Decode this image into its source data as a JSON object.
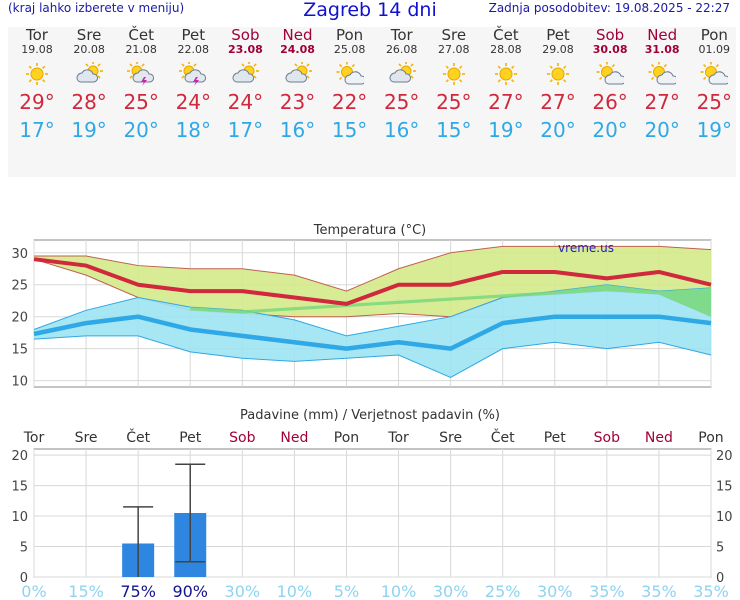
{
  "header": {
    "left_note": "(kraj lahko izberete v meniju)",
    "title": "Zagreb 14 dni",
    "updated": "Zadnja posodobitev: 19.08.2025 - 22:27"
  },
  "days": [
    {
      "name": "Tor",
      "date": "19.08",
      "weekend": false,
      "icon": "sun-icon",
      "max": "29°",
      "min": "17°"
    },
    {
      "name": "Sre",
      "date": "20.08",
      "weekend": false,
      "icon": "cloud-sun-icon",
      "max": "28°",
      "min": "19°"
    },
    {
      "name": "Čet",
      "date": "21.08",
      "weekend": false,
      "icon": "sun-thunder-icon",
      "max": "25°",
      "min": "20°"
    },
    {
      "name": "Pet",
      "date": "22.08",
      "weekend": false,
      "icon": "sun-thunder-icon",
      "max": "24°",
      "min": "18°"
    },
    {
      "name": "Sob",
      "date": "23.08",
      "weekend": true,
      "icon": "cloud-sun-icon",
      "max": "24°",
      "min": "17°"
    },
    {
      "name": "Ned",
      "date": "24.08",
      "weekend": true,
      "icon": "cloud-sun-icon",
      "max": "23°",
      "min": "16°"
    },
    {
      "name": "Pon",
      "date": "25.08",
      "weekend": false,
      "icon": "sun-cloud-icon",
      "max": "22°",
      "min": "15°"
    },
    {
      "name": "Tor",
      "date": "26.08",
      "weekend": false,
      "icon": "cloud-sun-icon",
      "max": "25°",
      "min": "16°"
    },
    {
      "name": "Sre",
      "date": "27.08",
      "weekend": false,
      "icon": "sun-icon",
      "max": "25°",
      "min": "15°"
    },
    {
      "name": "Čet",
      "date": "28.08",
      "weekend": false,
      "icon": "sun-icon",
      "max": "27°",
      "min": "19°"
    },
    {
      "name": "Pet",
      "date": "29.08",
      "weekend": false,
      "icon": "sun-icon",
      "max": "27°",
      "min": "20°"
    },
    {
      "name": "Sob",
      "date": "30.08",
      "weekend": true,
      "icon": "sun-cloud-icon",
      "max": "26°",
      "min": "20°"
    },
    {
      "name": "Ned",
      "date": "31.08",
      "weekend": true,
      "icon": "sun-cloud-icon",
      "max": "27°",
      "min": "20°"
    },
    {
      "name": "Pon",
      "date": "01.09",
      "weekend": false,
      "icon": "sun-cloud-icon",
      "max": "25°",
      "min": "19°"
    }
  ],
  "chart_data": [
    {
      "type": "line",
      "title": "Temperatura (°C)",
      "watermark": "vreme.us",
      "ylim": [
        9,
        32
      ],
      "yticks": [
        10,
        15,
        20,
        25,
        30
      ],
      "grid": true,
      "colors": {
        "max": "#d0283c",
        "min": "#2fa8e6",
        "max_band": "#d4ea8a",
        "min_band": "#9de3f2",
        "overlap": "#7ad87a"
      },
      "series": [
        {
          "values": [
            29,
            28,
            25,
            24,
            24,
            23,
            22,
            25,
            25,
            27,
            27,
            26,
            27,
            25
          ]
        },
        {
          "values": [
            17.3,
            19,
            20,
            18,
            17,
            16,
            15,
            16,
            15,
            19,
            20,
            20,
            20,
            19
          ]
        },
        {
          "values": [
            29.5,
            29.5,
            28,
            27.5,
            27.5,
            26.5,
            24,
            27.5,
            30,
            31,
            31,
            31,
            31,
            30.5
          ]
        },
        {
          "values": [
            29,
            26.5,
            23,
            21,
            20.5,
            20,
            20,
            20.5,
            20,
            23,
            23.5,
            24,
            23.5,
            20
          ]
        },
        {
          "values": [
            18,
            21,
            23,
            21.5,
            21,
            19.5,
            17,
            18.5,
            20,
            23,
            24,
            25,
            24,
            24.5
          ]
        },
        {
          "values": [
            16.5,
            17,
            17,
            14.5,
            13.5,
            13,
            13.5,
            14,
            10.5,
            15,
            16,
            15,
            16,
            14
          ]
        }
      ]
    },
    {
      "type": "bar",
      "title": "Padavine (mm) / Verjetnost padavin (%)",
      "categories": [
        "Tor",
        "Sre",
        "Čet",
        "Pet",
        "Sob",
        "Ned",
        "Pon",
        "Tor",
        "Sre",
        "Čet",
        "Pet",
        "Sob",
        "Ned",
        "Pon"
      ],
      "weekend": [
        false,
        false,
        false,
        false,
        true,
        true,
        false,
        false,
        false,
        false,
        false,
        true,
        true,
        false
      ],
      "ylim": [
        0,
        21
      ],
      "yticks": [
        0,
        5,
        10,
        15,
        20
      ],
      "grid": true,
      "values": [
        0,
        0,
        5.5,
        10.5,
        0,
        0,
        0,
        0,
        0,
        0,
        0,
        0,
        0,
        0
      ],
      "error_low": [
        0,
        0,
        0,
        2.5,
        0,
        0,
        0,
        0,
        0,
        0,
        0,
        0,
        0,
        0
      ],
      "error_high": [
        0,
        0,
        11.5,
        18.5,
        0,
        0,
        0,
        0,
        0,
        0,
        0,
        0,
        0,
        0
      ],
      "probability": [
        "0%",
        "15%",
        "75%",
        "90%",
        "30%",
        "10%",
        "5%",
        "10%",
        "30%",
        "25%",
        "30%",
        "35%",
        "35%",
        "35%"
      ],
      "colors": {
        "bar": "#2e86e0",
        "prob_high": "#14148c",
        "prob_low": "#8fd3f0"
      }
    }
  ]
}
